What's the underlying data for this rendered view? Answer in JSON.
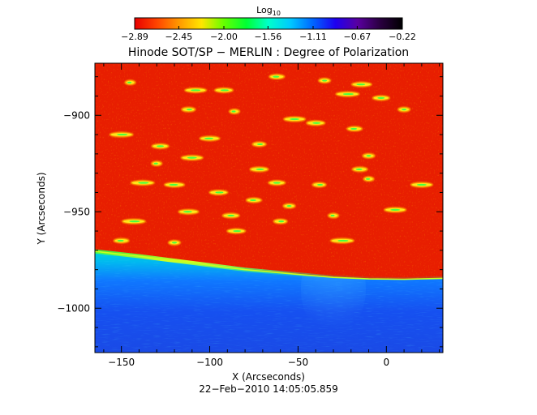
{
  "chart_data": {
    "type": "heatmap",
    "title": "Hinode SOT/SP − MERLIN : Degree of Polarization",
    "xlabel": "X (Arcseconds)",
    "ylabel": "Y (Arcseconds)",
    "date_label": "22−Feb−2010 14:05:05.859",
    "xlim": [
      -165,
      32
    ],
    "ylim": [
      -1023,
      -873
    ],
    "x_ticks": [
      -150,
      -100,
      -50,
      0
    ],
    "x_tick_labels": [
      "−150",
      "−100",
      "−50",
      "0"
    ],
    "y_ticks": [
      -900,
      -950,
      -1000
    ],
    "y_tick_labels": [
      "−900",
      "−950",
      "−1000"
    ],
    "colorbar": {
      "title": "Log",
      "title_subscript": "10",
      "range": [
        -2.89,
        -0.22
      ],
      "ticks": [
        -2.89,
        -2.45,
        -2.0,
        -1.56,
        -1.11,
        -0.67,
        -0.22
      ],
      "tick_labels": [
        "−2.89",
        "−2.45",
        "−2.00",
        "−1.56",
        "−1.11",
        "−0.67",
        "−0.22"
      ],
      "colormap": [
        "#e80000",
        "#ff4400",
        "#ff9a00",
        "#ffe600",
        "#66ff00",
        "#00ff33",
        "#00ffcc",
        "#00c8ff",
        "#0064ff",
        "#1e00f0",
        "#5a00a0",
        "#2a0040",
        "#000000"
      ]
    },
    "features": {
      "limb_curve": [
        [
          -165,
          -970.5
        ],
        [
          -140,
          -973.0
        ],
        [
          -110,
          -976.5
        ],
        [
          -80,
          -980.0
        ],
        [
          -50,
          -982.5
        ],
        [
          -30,
          -984.0
        ],
        [
          -10,
          -984.8
        ],
        [
          10,
          -985.0
        ],
        [
          32,
          -984.5
        ]
      ],
      "disk_log_value": -2.8,
      "limb_log_value": -1.9,
      "offlimb_log_value": -1.2,
      "activity_patches": [
        [
          -145,
          -883
        ],
        [
          -108,
          -887
        ],
        [
          -92,
          -887
        ],
        [
          -62,
          -880
        ],
        [
          -35,
          -882
        ],
        [
          -22,
          -889
        ],
        [
          -14,
          -884
        ],
        [
          -3,
          -891
        ],
        [
          -112,
          -897
        ],
        [
          -86,
          -898
        ],
        [
          -52,
          -902
        ],
        [
          -40,
          -904
        ],
        [
          -18,
          -907
        ],
        [
          10,
          -897
        ],
        [
          -150,
          -910
        ],
        [
          -100,
          -912
        ],
        [
          -128,
          -916
        ],
        [
          -72,
          -915
        ],
        [
          -130,
          -925
        ],
        [
          -110,
          -922
        ],
        [
          -72,
          -928
        ],
        [
          -15,
          -928
        ],
        [
          -10,
          -921
        ],
        [
          -138,
          -935
        ],
        [
          -120,
          -936
        ],
        [
          -62,
          -935
        ],
        [
          -38,
          -936
        ],
        [
          -10,
          -933
        ],
        [
          20,
          -936
        ],
        [
          -95,
          -940
        ],
        [
          -75,
          -944
        ],
        [
          -55,
          -947
        ],
        [
          -143,
          -955
        ],
        [
          -112,
          -950
        ],
        [
          -88,
          -952
        ],
        [
          -60,
          -955
        ],
        [
          -30,
          -952
        ],
        [
          5,
          -949
        ],
        [
          -85,
          -960
        ],
        [
          -150,
          -965
        ],
        [
          -120,
          -966
        ],
        [
          -25,
          -965
        ]
      ]
    }
  }
}
